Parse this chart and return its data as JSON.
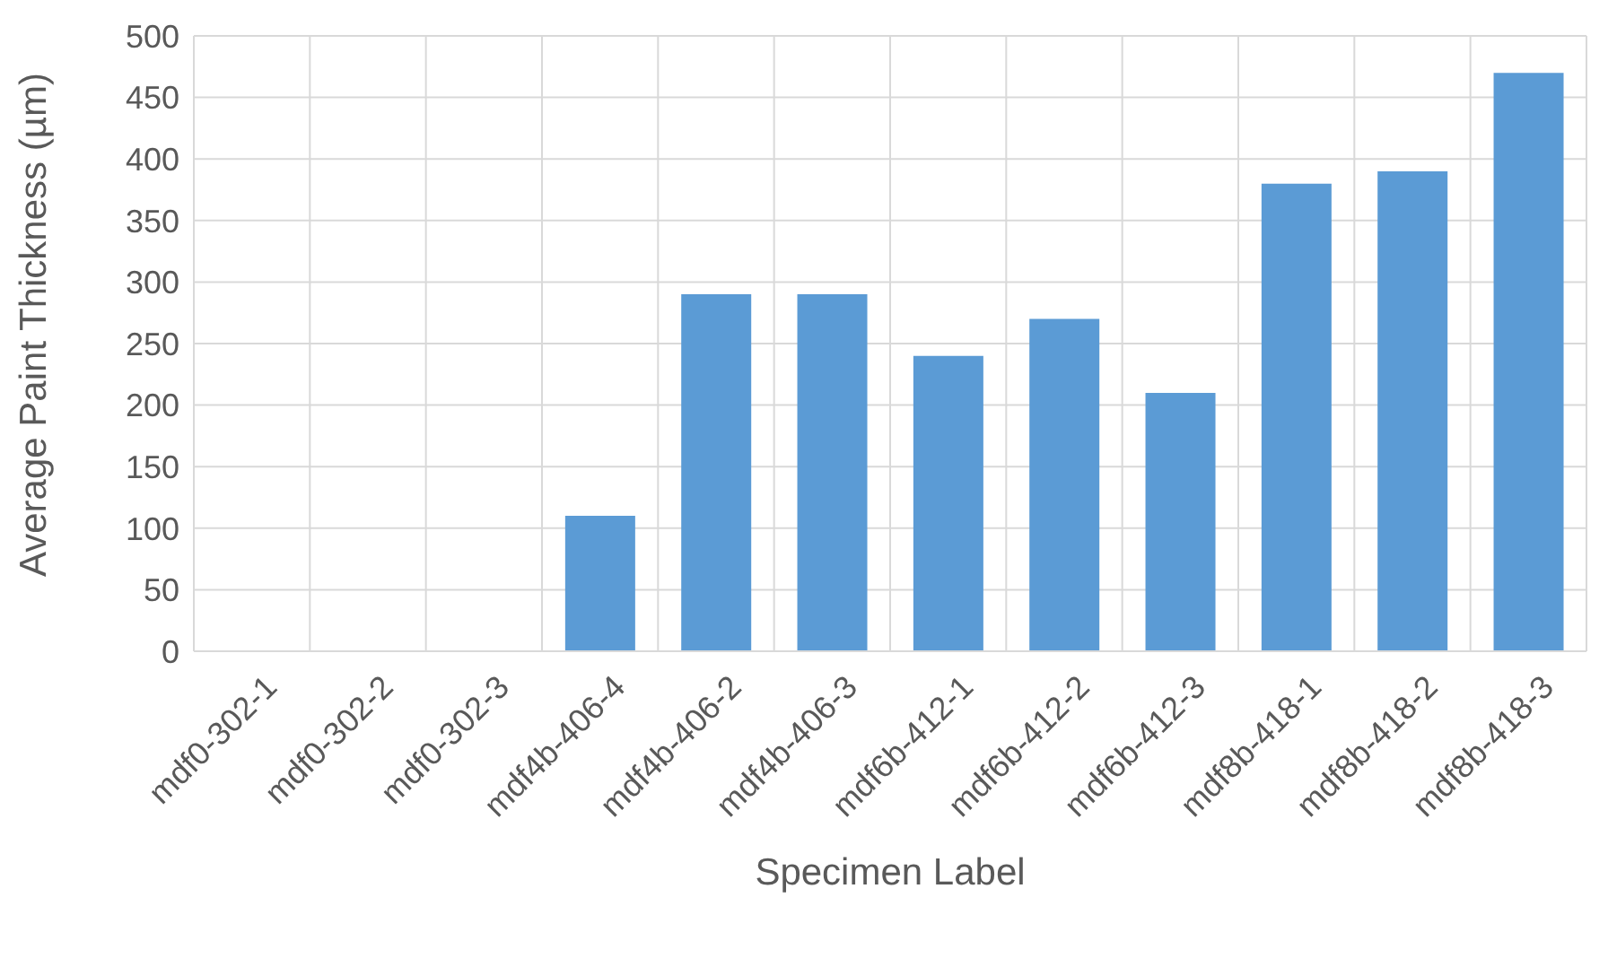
{
  "chart_data": {
    "type": "bar",
    "xlabel": "Specimen Label",
    "ylabel": "Average Paint Thickness (µm)",
    "categories": [
      "mdf0-302-1",
      "mdf0-302-2",
      "mdf0-302-3",
      "mdf4b-406-4",
      "mdf4b-406-2",
      "mdf4b-406-3",
      "mdf6b-412-1",
      "mdf6b-412-2",
      "mdf6b-412-3",
      "mdf8b-418-1",
      "mdf8b-418-2",
      "mdf8b-418-3"
    ],
    "values": [
      0,
      0,
      0,
      110,
      290,
      290,
      240,
      270,
      210,
      380,
      390,
      470
    ],
    "color": "#5b9bd5",
    "ylim": [
      0,
      500
    ],
    "yticks": [
      0,
      50,
      100,
      150,
      200,
      250,
      300,
      350,
      400,
      450,
      500
    ],
    "grid": true
  }
}
